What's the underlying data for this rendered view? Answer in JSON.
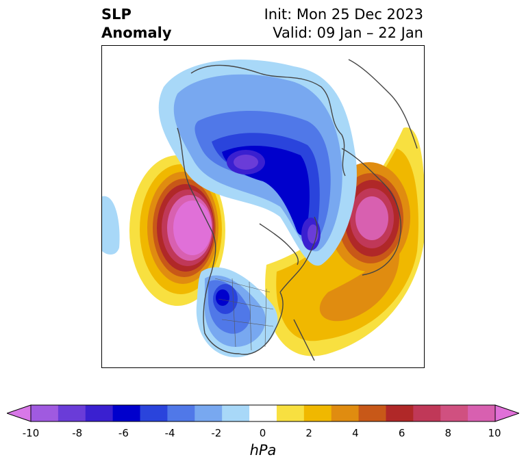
{
  "title": {
    "left_line1": "SLP",
    "left_line2": "Anomaly",
    "right_line1": "Init: Mon 25 Dec 2023",
    "right_line2": "Valid: 09 Jan – 22 Jan"
  },
  "colorbar": {
    "unit": "hPa",
    "ticks": [
      "-10",
      "-8",
      "-6",
      "-4",
      "-2",
      "0",
      "2",
      "4",
      "6",
      "8",
      "10"
    ],
    "colors": [
      "#d878e8",
      "#a05ae0",
      "#6a3cd8",
      "#3a20d0",
      "#0000cc",
      "#2a44dc",
      "#5078e8",
      "#78a8f0",
      "#a8d8f8",
      "#ffffff",
      "#f8e040",
      "#f0b800",
      "#e08c10",
      "#c85818",
      "#b02828",
      "#c03858",
      "#d05080",
      "#d860b0",
      "#e070d8"
    ]
  },
  "colors": {
    "land_outline": "#444444",
    "border": "#000000"
  }
}
